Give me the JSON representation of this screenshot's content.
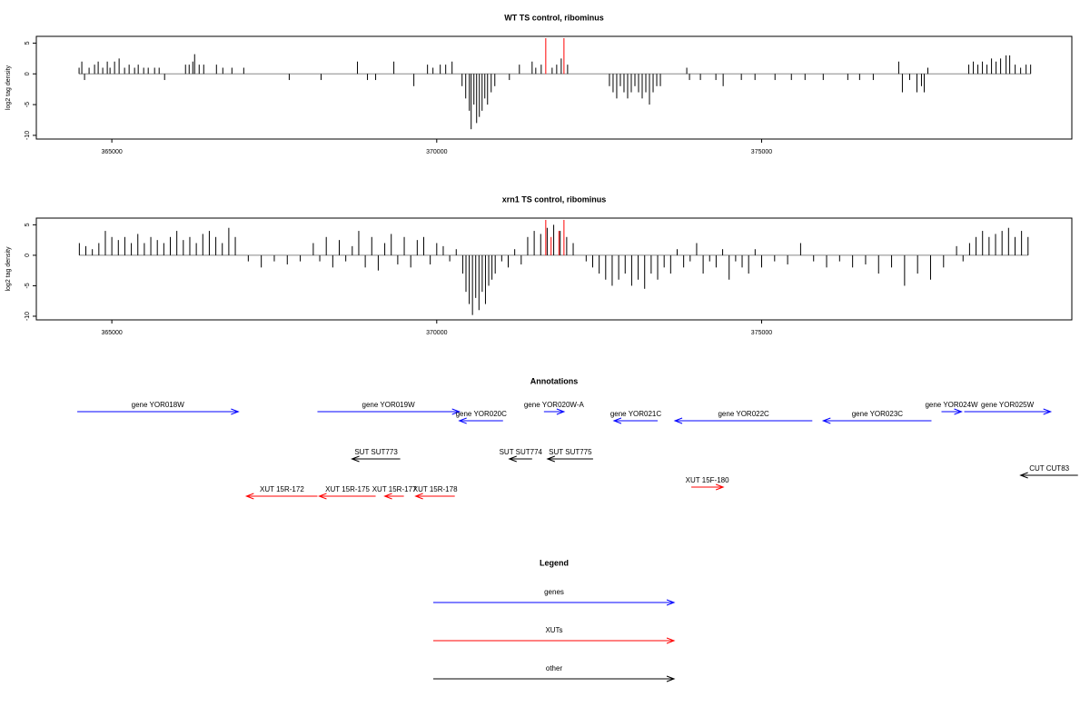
{
  "chart_data": [
    {
      "type": "bar",
      "title": "WT TS control, ribominus",
      "y_label": "log2 tag density",
      "xlim": [
        363838,
        379774
      ],
      "xticks": [
        365000,
        370000,
        375000
      ],
      "ylim": [
        -10.6,
        6.1
      ],
      "yticks": [
        -10,
        -5,
        0,
        5
      ],
      "baseline_color": "#888888",
      "series": [
        {
          "color": "#000000",
          "x": [
            364496,
            364538,
            364580,
            364650,
            364734,
            364790,
            364860,
            364930,
            364972,
            365042,
            365112,
            365196,
            365266,
            365350,
            365406,
            365490,
            365560,
            365658,
            365728,
            365812,
            366134,
            366190,
            366246,
            366274,
            366344,
            366414,
            366610,
            366708,
            366848,
            367030,
            367730,
            368220,
            368780,
            368934,
            369060,
            369340,
            369648,
            369858,
            369942,
            370054,
            370138,
            370236,
            370390,
            370446,
            370502,
            370530,
            370572,
            370614,
            370656,
            370698,
            370740,
            370782,
            370838,
            370894,
            371118,
            371272,
            371468,
            371524,
            371608,
            371776,
            371846,
            371916,
            372014,
            372658,
            372714,
            372770,
            372826,
            372882,
            372938,
            372994,
            373050,
            373106,
            373162,
            373218,
            373274,
            373330,
            373386,
            373442,
            373848,
            373890,
            374058,
            374296,
            374408,
            374688,
            374898,
            375206,
            375458,
            375668,
            375948,
            376326,
            376508,
            376718,
            377110,
            377166,
            377278,
            377390,
            377460,
            377502,
            377558,
            378188,
            378258,
            378328,
            378398,
            378468,
            378538,
            378608,
            378678,
            378762,
            378818,
            378902,
            378986,
            379070,
            379140
          ],
          "values": [
            1,
            2,
            -1,
            1,
            1.5,
            2,
            1,
            2,
            1,
            2,
            2.5,
            1,
            1.5,
            1,
            1.5,
            1,
            1,
            1,
            1,
            -1,
            1.5,
            1.5,
            2,
            3.2,
            1.5,
            1.5,
            1.5,
            1,
            1,
            1,
            -1,
            -1,
            2,
            -1,
            -1,
            2,
            -2,
            1.5,
            1,
            1.5,
            1.5,
            2,
            -2,
            -4,
            -6,
            -9,
            -5,
            -8,
            -7,
            -6,
            -4,
            -5,
            -3,
            -2,
            -1,
            1.5,
            2,
            1,
            1.5,
            1,
            1.5,
            2.5,
            1.5,
            -2,
            -3,
            -4,
            -2,
            -3,
            -4,
            -3,
            -2,
            -3,
            -4,
            -3,
            -5,
            -3,
            -2,
            -2,
            1,
            -1,
            -1,
            -1,
            -2,
            -1,
            -1,
            -1,
            -1,
            -1,
            -1,
            -1,
            -1,
            -1,
            2,
            -3,
            -1,
            -3,
            -2,
            -3,
            1,
            1.5,
            2,
            1.5,
            2,
            1.5,
            2.5,
            2,
            2.5,
            3,
            3,
            1.5,
            1,
            1.5,
            1.5
          ]
        },
        {
          "color": "#ff0000",
          "x": [
            371678,
            371958
          ],
          "values": [
            5.8,
            5.8
          ]
        }
      ]
    },
    {
      "type": "bar",
      "title": "xrn1 TS control, ribominus",
      "y_label": "log2 tag density",
      "xlim": [
        363838,
        379774
      ],
      "xticks": [
        365000,
        370000,
        375000
      ],
      "ylim": [
        -10.6,
        6.1
      ],
      "yticks": [
        -10,
        -5,
        0,
        5
      ],
      "baseline_color": "#888888",
      "series": [
        {
          "color": "#000000",
          "x": [
            364500,
            364600,
            364700,
            364800,
            364900,
            365000,
            365100,
            365200,
            365300,
            365400,
            365500,
            365600,
            365700,
            365800,
            365900,
            366000,
            366100,
            366200,
            366300,
            366400,
            366500,
            366600,
            366700,
            366800,
            366900,
            367100,
            367300,
            367500,
            367700,
            367900,
            368100,
            368200,
            368300,
            368400,
            368500,
            368600,
            368700,
            368800,
            368900,
            369000,
            369100,
            369200,
            369300,
            369400,
            369500,
            369600,
            369700,
            369800,
            369900,
            370000,
            370100,
            370200,
            370300,
            370400,
            370450,
            370500,
            370550,
            370600,
            370650,
            370700,
            370750,
            370800,
            370850,
            370900,
            371000,
            371100,
            371200,
            371300,
            371400,
            371500,
            371600,
            371700,
            371800,
            371900,
            372000,
            372100,
            372300,
            372400,
            372500,
            372600,
            372700,
            372800,
            372900,
            373000,
            373100,
            373200,
            373300,
            373400,
            373500,
            373600,
            373700,
            373800,
            373900,
            374000,
            374100,
            374200,
            374300,
            374400,
            374500,
            374600,
            374700,
            374800,
            374900,
            375000,
            375200,
            375400,
            375600,
            375800,
            376000,
            376200,
            376400,
            376600,
            376800,
            377000,
            377200,
            377400,
            377600,
            377800,
            378000,
            378100,
            378200,
            378300,
            378400,
            378500,
            378600,
            378700,
            378800,
            378900,
            379000,
            379100
          ],
          "values": [
            2,
            1.5,
            1,
            2,
            4,
            3,
            2.5,
            3,
            2,
            3.5,
            2,
            3,
            2.5,
            2,
            3,
            4,
            2.5,
            3,
            2,
            3.5,
            4,
            3,
            2,
            4.5,
            3,
            -1,
            -2,
            -1,
            -1.5,
            -1,
            2,
            -1,
            3,
            -2,
            2.5,
            -1,
            1.5,
            4,
            -2,
            3,
            -2.5,
            2,
            3.5,
            -1.5,
            3,
            -2,
            2.5,
            3,
            -1.5,
            2,
            1.5,
            -1,
            1,
            -3,
            -6,
            -8,
            -9.8,
            -7,
            -9,
            -6,
            -8,
            -5,
            -4,
            -3,
            -1,
            -2,
            1,
            -1.5,
            3,
            4,
            3.5,
            4.5,
            5,
            4,
            3,
            2,
            -1,
            -2,
            -3,
            -4,
            -5,
            -4,
            -3,
            -5,
            -4,
            -5.5,
            -3,
            -4,
            -2,
            -3,
            1,
            -2,
            -1,
            2,
            -3,
            -1,
            -2,
            1,
            -4,
            -1,
            -2,
            -3,
            1,
            -2,
            -1,
            -1.5,
            2,
            -1,
            -2,
            -1,
            -2,
            -1.5,
            -3,
            -2,
            -5,
            -3,
            -4,
            -2,
            1.5,
            -1,
            2,
            3,
            4,
            3,
            3.5,
            4,
            4.5,
            3,
            4,
            3
          ]
        },
        {
          "color": "#ff0000",
          "x": [
            371678,
            371760,
            371880,
            371958
          ],
          "values": [
            5.8,
            3,
            4,
            5.8
          ]
        }
      ]
    }
  ],
  "annotations": {
    "title": "Annotations",
    "features": [
      {
        "label": "gene YOR018W",
        "start": 364468,
        "end": 366946,
        "strand": "+",
        "color": "#0000ff"
      },
      {
        "label": "gene YOR019W",
        "start": 368164,
        "end": 370348,
        "strand": "+",
        "color": "#0000ff"
      },
      {
        "label": "gene YOR020C",
        "start": 370348,
        "end": 371020,
        "strand": "-",
        "color": "#0000ff"
      },
      {
        "label": "gene YOR020W-A",
        "start": 371650,
        "end": 371958,
        "strand": "+",
        "color": "#0000ff"
      },
      {
        "label": "gene YOR021C",
        "start": 372728,
        "end": 373400,
        "strand": "-",
        "color": "#0000ff"
      },
      {
        "label": "gene YOR022C",
        "start": 373666,
        "end": 375780,
        "strand": "-",
        "color": "#0000ff"
      },
      {
        "label": "gene YOR023C",
        "start": 375948,
        "end": 377614,
        "strand": "-",
        "color": "#0000ff"
      },
      {
        "label": "gene YOR024W",
        "start": 377768,
        "end": 378076,
        "strand": "+",
        "color": "#0000ff"
      },
      {
        "label": "gene YOR025W",
        "start": 378118,
        "end": 379448,
        "strand": "+",
        "color": "#0000ff"
      },
      {
        "label": "SUT SUT773",
        "start": 368696,
        "end": 369438,
        "strand": "-",
        "color": "#000000"
      },
      {
        "label": "SUT SUT774",
        "start": 371118,
        "end": 371468,
        "strand": "-",
        "color": "#000000"
      },
      {
        "label": "SUT SUT775",
        "start": 371706,
        "end": 372406,
        "strand": "-",
        "color": "#000000"
      },
      {
        "label": "CUT CUT83",
        "start": 378986,
        "end": 379868,
        "strand": "-",
        "color": "#000000"
      },
      {
        "label": "XUT 15R-172",
        "start": 367072,
        "end": 368164,
        "strand": "-",
        "color": "#ff0000"
      },
      {
        "label": "XUT 15R-175",
        "start": 368192,
        "end": 369060,
        "strand": "-",
        "color": "#ff0000"
      },
      {
        "label": "XUT 15R-177",
        "start": 369200,
        "end": 369494,
        "strand": "-",
        "color": "#ff0000"
      },
      {
        "label": "XUT 15R-178",
        "start": 369676,
        "end": 370278,
        "strand": "-",
        "color": "#ff0000"
      },
      {
        "label": "XUT 15F-180",
        "start": 373918,
        "end": 374408,
        "strand": "+",
        "color": "#ff0000"
      }
    ]
  },
  "legend": {
    "title": "Legend",
    "items": [
      {
        "name": "genes",
        "color": "#0000ff"
      },
      {
        "name": "XUTs",
        "color": "#ff0000"
      },
      {
        "name": "other",
        "color": "#000000"
      }
    ]
  }
}
